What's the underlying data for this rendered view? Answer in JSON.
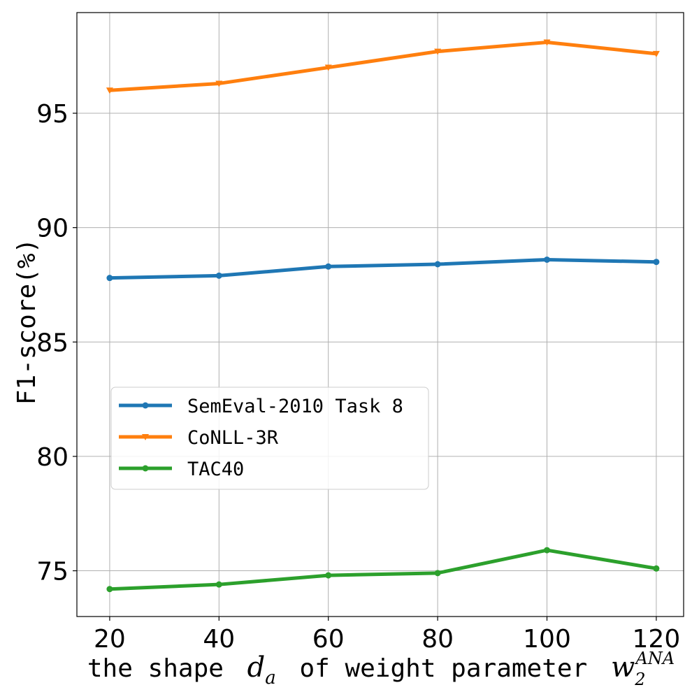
{
  "chart_data": {
    "type": "line",
    "title": "",
    "xlabel": "the shape",
    "xlabel_var": "d",
    "xlabel_var_sub": "a",
    "xlabel_mid": "of weight parameter",
    "xlabel_var2": "w",
    "xlabel_var2_sub": "2",
    "xlabel_var2_sup": "ANA",
    "ylabel": "F1-score(%)",
    "x": [
      20,
      40,
      60,
      80,
      100,
      120
    ],
    "xticks": [
      "20",
      "40",
      "60",
      "80",
      "100",
      "120"
    ],
    "yticks": [
      "75",
      "80",
      "85",
      "90",
      "95"
    ],
    "ytick_values": [
      75,
      80,
      85,
      90,
      95
    ],
    "xlim": [
      14,
      125
    ],
    "ylim": [
      73,
      99.4
    ],
    "grid": true,
    "legend_position": "center-left",
    "series": [
      {
        "name": "SemEval-2010 Task 8",
        "color": "#1f77b4",
        "marker": "circle",
        "values": [
          87.8,
          87.9,
          88.3,
          88.4,
          88.6,
          88.5
        ]
      },
      {
        "name": "CoNLL-3R",
        "color": "#ff7f0e",
        "marker": "triangle-down",
        "values": [
          96.0,
          96.3,
          97.0,
          97.7,
          98.1,
          97.6
        ]
      },
      {
        "name": "TAC40",
        "color": "#2ca02c",
        "marker": "circle",
        "values": [
          74.2,
          74.4,
          74.8,
          74.9,
          75.9,
          75.1
        ]
      }
    ]
  }
}
